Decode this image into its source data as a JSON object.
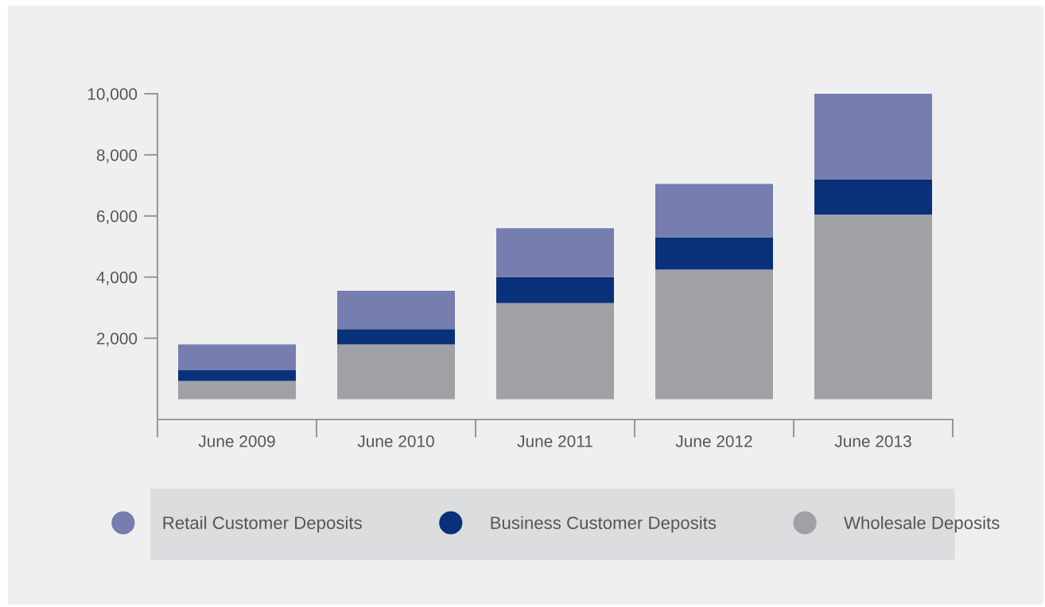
{
  "chart_data": {
    "type": "bar",
    "stacked": true,
    "categories": [
      "June 2009",
      "June 2010",
      "June 2011",
      "June 2012",
      "June 2013"
    ],
    "series": [
      {
        "name": "Wholesale Deposits",
        "color": "#a0a1a5",
        "values": [
          600,
          1800,
          3150,
          4250,
          6050
        ]
      },
      {
        "name": "Business Customer Deposits",
        "color": "#09317a",
        "values": [
          350,
          500,
          850,
          1050,
          1150
        ]
      },
      {
        "name": "Retail Customer Deposits",
        "color": "#767daf",
        "values": [
          850,
          1250,
          1600,
          1750,
          2800
        ]
      }
    ],
    "ylim": [
      -660,
      10000
    ],
    "yticks": [
      {
        "value": 2000,
        "label": "2,000"
      },
      {
        "value": 4000,
        "label": "4,000"
      },
      {
        "value": 6000,
        "label": "6,000"
      },
      {
        "value": 8000,
        "label": "8,000"
      },
      {
        "value": 10000,
        "label": "10,000"
      }
    ],
    "grid": false,
    "legend": "bottom"
  }
}
